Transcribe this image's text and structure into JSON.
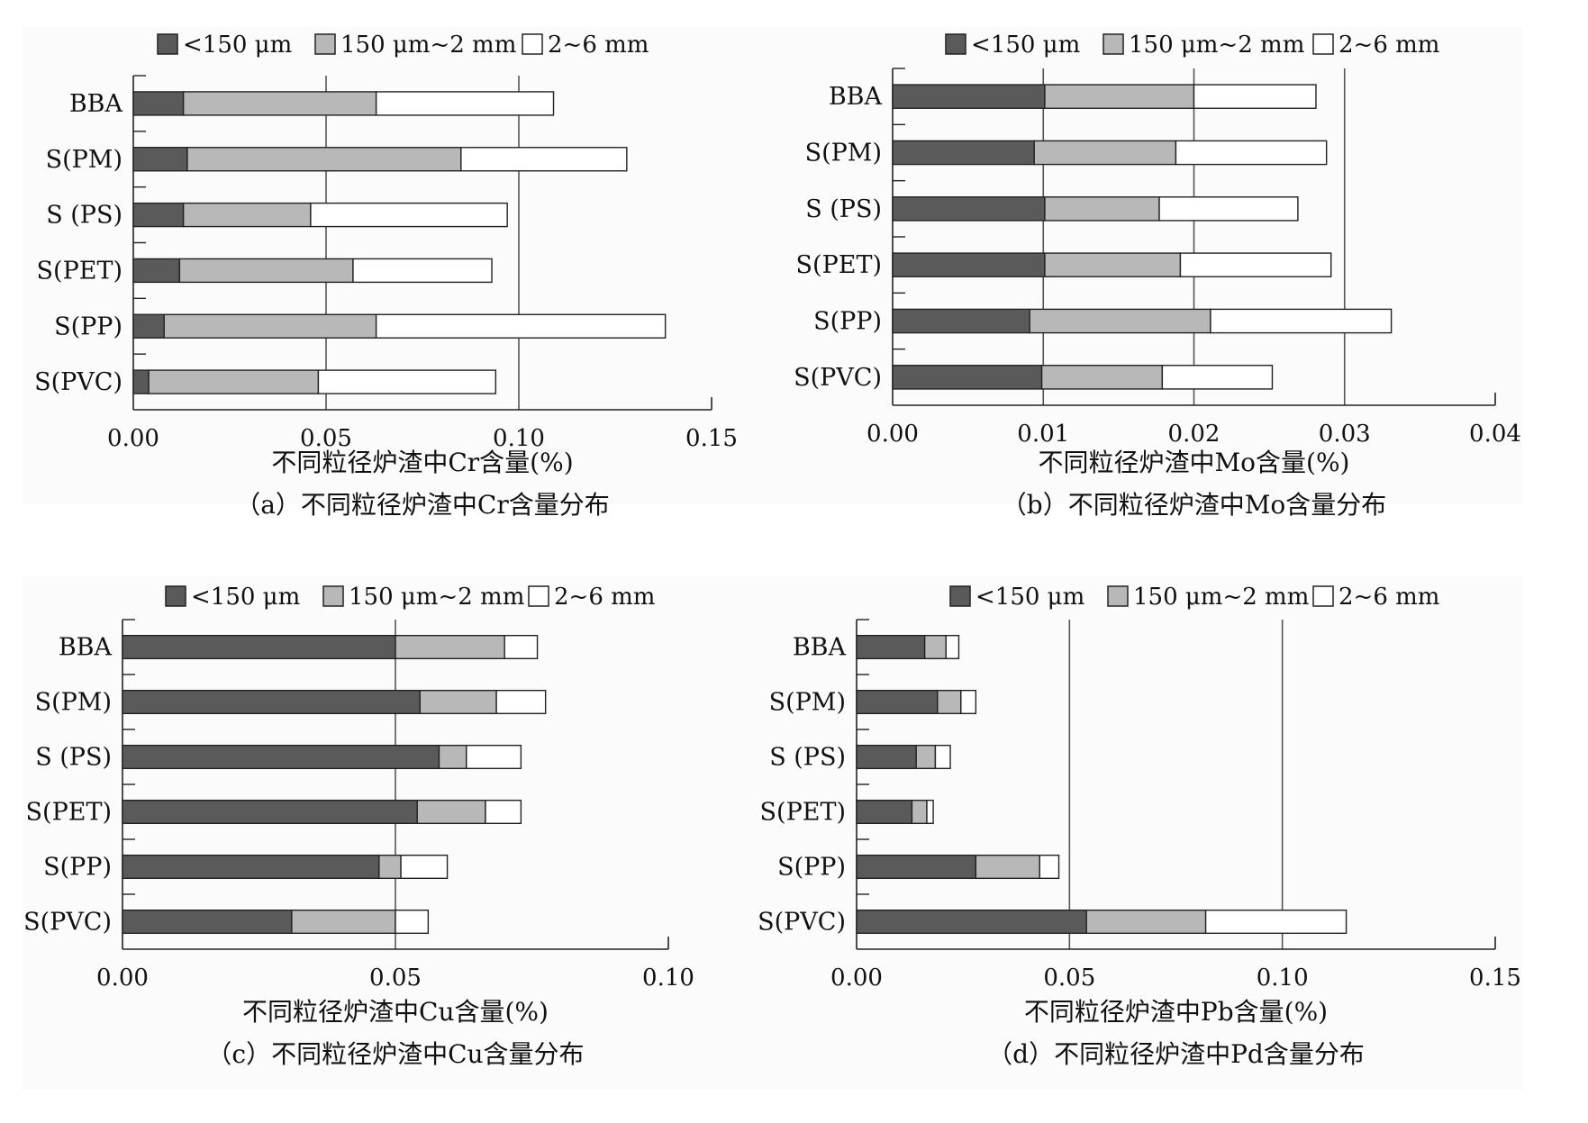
{
  "figure": {
    "legend_labels": [
      "<150 μm",
      "150 μm~2 mm",
      "2~6 mm"
    ],
    "legend_colors": [
      "#5a5a5a",
      "#b8b8b8",
      "#ffffff"
    ]
  },
  "chart_data": [
    {
      "type": "bar",
      "orientation": "horizontal",
      "stacked": true,
      "categories": [
        "BBA",
        "S(PM)",
        "S (PS)",
        "S(PET)",
        "S(PP)",
        "S(PVC)"
      ],
      "series": [
        {
          "name": "<150 μm",
          "values": [
            0.013,
            0.014,
            0.013,
            0.012,
            0.008,
            0.004
          ]
        },
        {
          "name": "150 μm~2 mm",
          "values": [
            0.05,
            0.071,
            0.033,
            0.045,
            0.055,
            0.044
          ]
        },
        {
          "name": "2~6 mm",
          "values": [
            0.046,
            0.043,
            0.051,
            0.036,
            0.075,
            0.046
          ]
        }
      ],
      "xlim": [
        0,
        0.15
      ],
      "xticks": [
        "0.00",
        "0.05",
        "0.10",
        "0.15"
      ],
      "gridlines": [
        0.05,
        0.1
      ],
      "xlabel": "不同粒径炉渣中Cr含量(%)",
      "caption": "（a）不同粒径炉渣中Cr含量分布",
      "legend_position": "top"
    },
    {
      "type": "bar",
      "orientation": "horizontal",
      "stacked": true,
      "categories": [
        "BBA",
        "S(PM)",
        "S (PS)",
        "S(PET)",
        "S(PP)",
        "S(PVC)"
      ],
      "series": [
        {
          "name": "<150 μm",
          "values": [
            0.0101,
            0.0094,
            0.0101,
            0.0101,
            0.0091,
            0.0099
          ]
        },
        {
          "name": "150 μm~2 mm",
          "values": [
            0.0099,
            0.0094,
            0.0076,
            0.009,
            0.012,
            0.008
          ]
        },
        {
          "name": "2~6 mm",
          "values": [
            0.0081,
            0.01,
            0.0092,
            0.01,
            0.012,
            0.0073
          ]
        }
      ],
      "xlim": [
        0,
        0.04
      ],
      "xticks": [
        "0.00",
        "0.01",
        "0.02",
        "0.03",
        "0.04"
      ],
      "gridlines": [
        0.01,
        0.02,
        0.03
      ],
      "xlabel": "不同粒径炉渣中Mo含量(%)",
      "caption": "（b）不同粒径炉渣中Mo含量分布",
      "legend_position": "top"
    },
    {
      "type": "bar",
      "orientation": "horizontal",
      "stacked": true,
      "categories": [
        "BBA",
        "S(PM)",
        "S (PS)",
        "S(PET)",
        "S(PP)",
        "S(PVC)"
      ],
      "series": [
        {
          "name": "<150 μm",
          "values": [
            0.05,
            0.0545,
            0.058,
            0.054,
            0.047,
            0.031
          ]
        },
        {
          "name": "150 μm~2 mm",
          "values": [
            0.02,
            0.014,
            0.005,
            0.0125,
            0.004,
            0.019
          ]
        },
        {
          "name": "2~6 mm",
          "values": [
            0.006,
            0.009,
            0.01,
            0.0065,
            0.0085,
            0.006
          ]
        }
      ],
      "xlim": [
        0,
        0.1
      ],
      "xticks": [
        "0.00",
        "0.05",
        "0.10"
      ],
      "gridlines": [
        0.05
      ],
      "xlabel": "不同粒径炉渣中Cu含量(%)",
      "caption": "（c）不同粒径炉渣中Cu含量分布",
      "legend_position": "top"
    },
    {
      "type": "bar",
      "orientation": "horizontal",
      "stacked": true,
      "categories": [
        "BBA",
        "S(PM)",
        "S (PS)",
        "S(PET)",
        "S(PP)",
        "S(PVC)"
      ],
      "series": [
        {
          "name": "<150 μm",
          "values": [
            0.016,
            0.019,
            0.014,
            0.013,
            0.028,
            0.054
          ]
        },
        {
          "name": "150 μm~2 mm",
          "values": [
            0.005,
            0.0055,
            0.0045,
            0.0035,
            0.015,
            0.028
          ]
        },
        {
          "name": "2~6 mm",
          "values": [
            0.003,
            0.0035,
            0.0035,
            0.0015,
            0.0045,
            0.033
          ]
        }
      ],
      "xlim": [
        0,
        0.15
      ],
      "xticks": [
        "0.00",
        "0.05",
        "0.10",
        "0.15"
      ],
      "gridlines": [
        0.05,
        0.1
      ],
      "xlabel": "不同粒径炉渣中Pb含量(%)",
      "caption": "（d）不同粒径炉渣中Pd含量分布",
      "legend_position": "top"
    }
  ]
}
